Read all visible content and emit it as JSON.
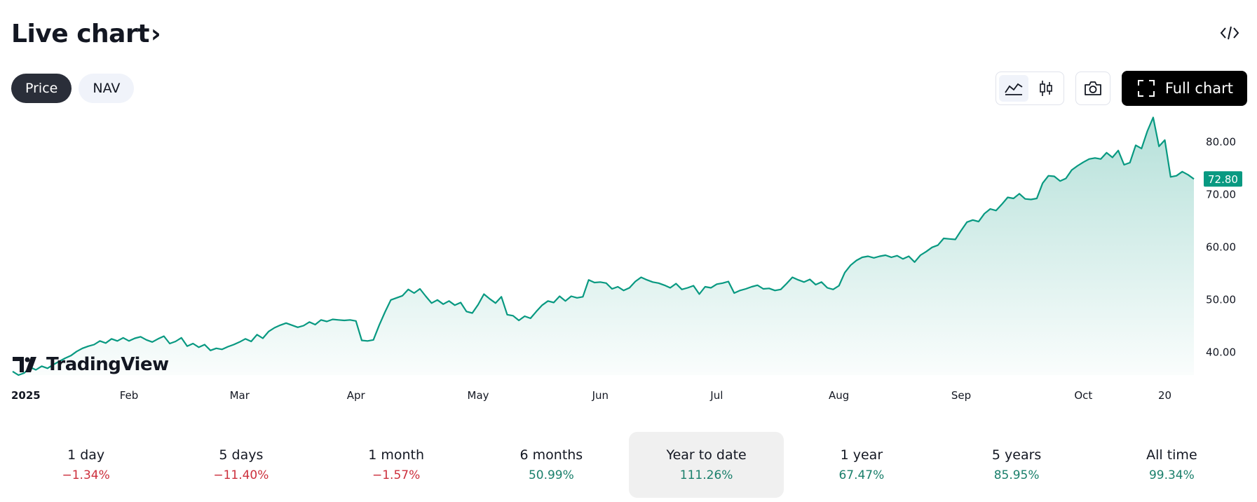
{
  "header": {
    "title": "Live chart",
    "chevron": "›"
  },
  "toggle": {
    "items": [
      {
        "label": "Price",
        "active": true
      },
      {
        "label": "NAV",
        "active": false
      }
    ]
  },
  "toolbar": {
    "line_icon": "line-chart-icon",
    "candle_icon": "candlestick-icon",
    "camera_icon": "camera-icon",
    "fullscreen_icon": "fullscreen-icon",
    "embed_icon": "code-embed-icon",
    "full_chart_label": "Full chart"
  },
  "chart_data": {
    "type": "area",
    "line_color": "#089981",
    "fill_color": "#089981",
    "y_ticks": [
      "80.00",
      "70.00",
      "60.00",
      "50.00",
      "40.00"
    ],
    "y_tick_values": [
      80,
      70,
      60,
      50,
      40
    ],
    "ylim": [
      35.5,
      85.5
    ],
    "x_ticks": [
      "2025",
      "Feb",
      "Mar",
      "Apr",
      "May",
      "Jun",
      "Jul",
      "Aug",
      "Sep",
      "Oct",
      "20"
    ],
    "x_tick_index": [
      0,
      20,
      39,
      59,
      80,
      101,
      121,
      142,
      163,
      184,
      198
    ],
    "last_price_label": "72.80",
    "last_price": 72.8,
    "values": [
      36.2,
      35.5,
      35.9,
      37.0,
      36.5,
      37.2,
      36.8,
      37.5,
      38.1,
      38.7,
      39.2,
      40.0,
      40.6,
      41.0,
      41.3,
      42.0,
      41.6,
      42.4,
      42.0,
      42.6,
      42.0,
      42.5,
      42.8,
      42.2,
      41.8,
      42.4,
      42.9,
      41.5,
      41.9,
      42.6,
      41.0,
      41.5,
      40.8,
      41.3,
      40.2,
      40.6,
      40.4,
      40.9,
      41.3,
      41.8,
      42.4,
      41.9,
      43.2,
      42.5,
      43.8,
      44.5,
      45.0,
      45.4,
      45.0,
      44.6,
      44.9,
      45.6,
      45.1,
      46.0,
      45.7,
      46.1,
      46.0,
      45.9,
      46.0,
      45.8,
      42.1,
      42.0,
      42.2,
      45.0,
      47.5,
      49.8,
      50.2,
      50.6,
      51.8,
      51.1,
      51.9,
      50.5,
      49.2,
      49.8,
      49.0,
      49.6,
      48.8,
      49.3,
      47.6,
      47.3,
      48.9,
      50.9,
      50.0,
      49.2,
      50.4,
      47.0,
      46.8,
      45.9,
      46.7,
      46.3,
      47.6,
      48.8,
      49.6,
      49.3,
      50.5,
      49.6,
      50.5,
      50.2,
      50.4,
      53.6,
      53.1,
      53.2,
      53.0,
      51.9,
      52.3,
      51.6,
      52.1,
      53.3,
      54.1,
      53.6,
      53.2,
      53.0,
      52.6,
      52.1,
      52.9,
      51.8,
      52.1,
      52.5,
      50.9,
      52.3,
      52.1,
      52.8,
      53.0,
      53.3,
      51.1,
      51.6,
      51.9,
      52.3,
      52.6,
      51.9,
      52.0,
      51.6,
      51.8,
      52.9,
      54.1,
      53.6,
      53.2,
      53.7,
      52.7,
      53.2,
      52.1,
      51.8,
      52.5,
      55.0,
      56.4,
      57.3,
      57.9,
      58.1,
      57.8,
      58.1,
      58.3,
      57.9,
      58.2,
      57.6,
      58.1,
      57.0,
      58.3,
      59.0,
      59.8,
      60.2,
      61.5,
      61.4,
      61.3,
      63.0,
      64.6,
      65.0,
      64.7,
      66.2,
      67.1,
      66.8,
      68.0,
      69.3,
      69.1,
      70.0,
      69.0,
      68.9,
      69.1,
      72.0,
      73.4,
      73.3,
      72.4,
      72.9,
      74.5,
      75.3,
      76.0,
      76.6,
      76.8,
      76.6,
      77.8,
      76.9,
      78.2,
      75.5,
      75.9,
      79.2,
      78.6,
      81.9,
      84.5,
      79.0,
      80.2,
      73.2,
      73.4,
      74.2,
      73.6,
      72.8
    ]
  },
  "watermark": {
    "icon": "tradingview-logo-icon",
    "text": "TradingView"
  },
  "ranges": [
    {
      "label": "1 day",
      "value": "−1.34%",
      "dir": "neg",
      "active": false
    },
    {
      "label": "5 days",
      "value": "−11.40%",
      "dir": "neg",
      "active": false
    },
    {
      "label": "1 month",
      "value": "−1.57%",
      "dir": "neg",
      "active": false
    },
    {
      "label": "6 months",
      "value": "50.99%",
      "dir": "pos",
      "active": false
    },
    {
      "label": "Year to date",
      "value": "111.26%",
      "dir": "pos",
      "active": true
    },
    {
      "label": "1 year",
      "value": "67.47%",
      "dir": "pos",
      "active": false
    },
    {
      "label": "5 years",
      "value": "85.95%",
      "dir": "pos",
      "active": false
    },
    {
      "label": "All time",
      "value": "99.34%",
      "dir": "pos",
      "active": false
    }
  ]
}
